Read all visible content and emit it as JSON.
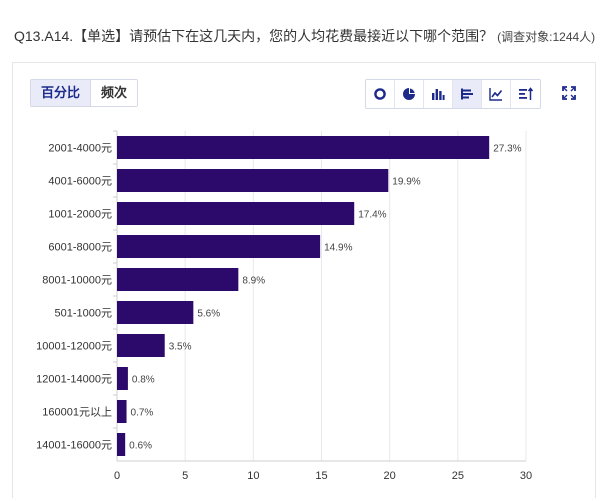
{
  "question": {
    "text": "Q13.A14.【单选】请预估下在这几天内，您的人均花费最接近以下哪个范围？",
    "meta": "(调查对象:1244人)"
  },
  "mode_tabs": [
    {
      "label": "百分比",
      "active": true
    },
    {
      "label": "频次",
      "active": false
    }
  ],
  "chart_types": [
    {
      "icon": "donut-chart-icon",
      "active": false
    },
    {
      "icon": "pie-chart-icon",
      "active": false
    },
    {
      "icon": "bar-chart-icon",
      "active": false
    },
    {
      "icon": "horizontal-bar-icon",
      "active": true
    },
    {
      "icon": "line-chart-icon",
      "active": false
    },
    {
      "icon": "sort-icon",
      "active": false
    }
  ],
  "fullscreen_icon": "fullscreen-icon",
  "chart_data": {
    "type": "bar",
    "orientation": "horizontal",
    "categories": [
      "2001-4000元",
      "4001-6000元",
      "1001-2000元",
      "6001-8000元",
      "8001-10000元",
      "501-1000元",
      "10001-12000元",
      "12001-14000元",
      "160001元以上",
      "14001-16000元"
    ],
    "values": [
      27.3,
      19.9,
      17.4,
      14.9,
      8.9,
      5.6,
      3.5,
      0.8,
      0.7,
      0.6
    ],
    "value_labels": [
      "27.3%",
      "19.9%",
      "17.4%",
      "14.9%",
      "8.9%",
      "5.6%",
      "3.5%",
      "0.8%",
      "0.7%",
      "0.6%"
    ],
    "xlim": [
      0,
      30
    ],
    "xticks": [
      0,
      5,
      10,
      15,
      20,
      25,
      30
    ],
    "grid": true,
    "bar_color": "#2b0a6b"
  }
}
